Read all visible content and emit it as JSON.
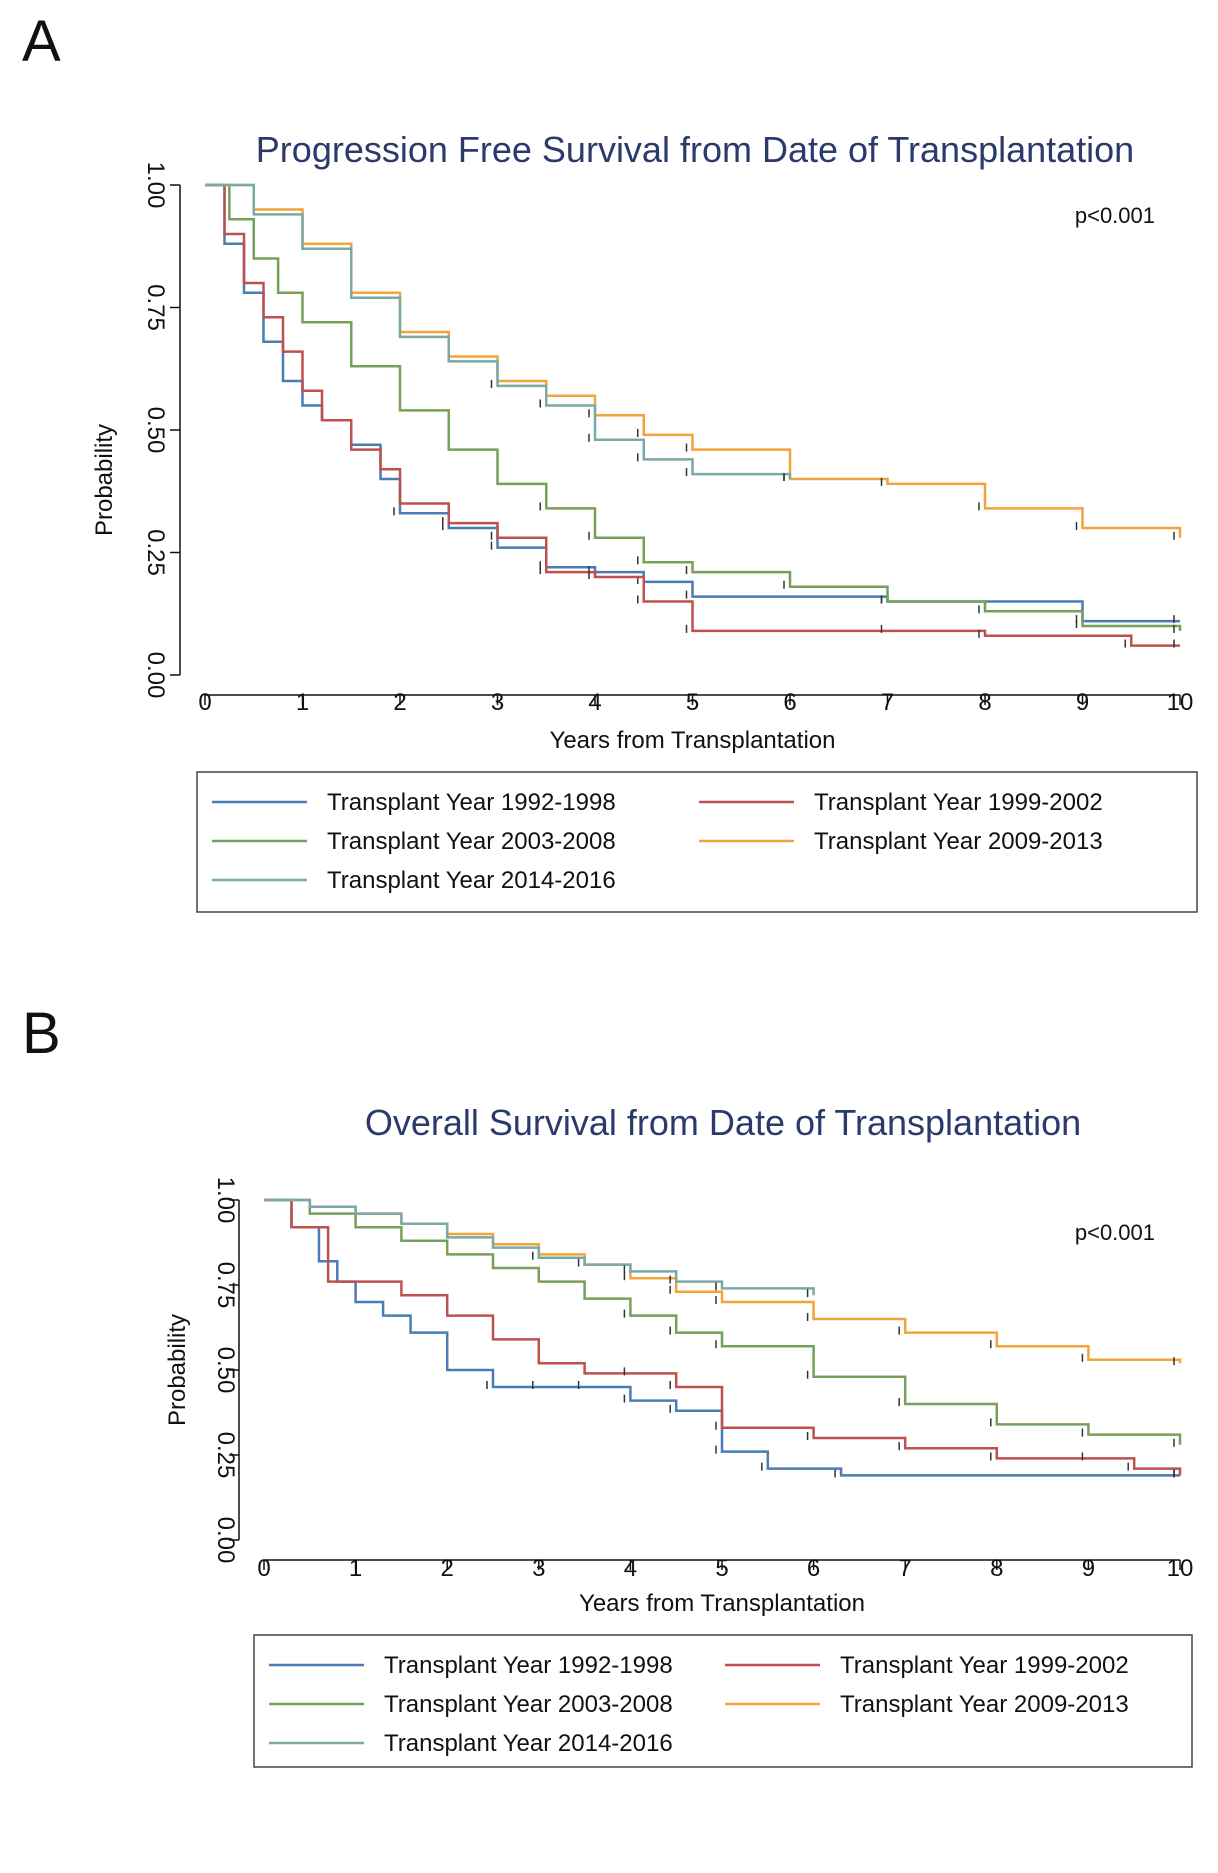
{
  "panels": [
    {
      "letter": "A",
      "chart_data": {
        "type": "line",
        "subtype": "kaplan-meier",
        "title": "Progression Free Survival from Date of Transplantation",
        "xlabel": "Years from Transplantation",
        "ylabel": "Probability",
        "annotation": "p<0.001",
        "xlim": [
          0,
          10
        ],
        "ylim": [
          0,
          1
        ],
        "xticks": [
          "0",
          "1",
          "2",
          "3",
          "4",
          "5",
          "6",
          "7",
          "8",
          "9",
          "10"
        ],
        "yticks": [
          "0.00",
          "0.25",
          "0.50",
          "0.75",
          "1.00"
        ],
        "legend": "bottom",
        "series": [
          {
            "name": "Transplant Year 1992-1998",
            "color": "#4a7cb5",
            "x": [
              0,
              0.2,
              0.4,
              0.6,
              0.8,
              1.0,
              1.2,
              1.5,
              1.8,
              2.0,
              2.5,
              3.0,
              3.5,
              4.0,
              4.5,
              5.0,
              7.0,
              9.0,
              10.0
            ],
            "y": [
              1.0,
              0.88,
              0.78,
              0.68,
              0.6,
              0.55,
              0.52,
              0.47,
              0.4,
              0.33,
              0.3,
              0.26,
              0.22,
              0.21,
              0.19,
              0.16,
              0.15,
              0.11,
              0.11
            ]
          },
          {
            "name": "Transplant Year 1999-2002",
            "color": "#c0504d",
            "x": [
              0,
              0.2,
              0.4,
              0.6,
              0.8,
              1.0,
              1.2,
              1.5,
              1.8,
              2.0,
              2.5,
              3.0,
              3.5,
              4.0,
              4.5,
              5.0,
              7.0,
              8.0,
              9.5,
              10.0
            ],
            "y": [
              1.0,
              0.9,
              0.8,
              0.73,
              0.66,
              0.58,
              0.52,
              0.46,
              0.42,
              0.35,
              0.31,
              0.28,
              0.21,
              0.2,
              0.15,
              0.09,
              0.09,
              0.08,
              0.06,
              0.06
            ]
          },
          {
            "name": "Transplant Year 2003-2008",
            "color": "#77a05a",
            "x": [
              0,
              0.25,
              0.5,
              0.75,
              1.0,
              1.5,
              2.0,
              2.5,
              3.0,
              3.5,
              4.0,
              4.5,
              5.0,
              6.0,
              7.0,
              8.0,
              9.0,
              10.0
            ],
            "y": [
              1.0,
              0.93,
              0.85,
              0.78,
              0.72,
              0.63,
              0.54,
              0.46,
              0.39,
              0.34,
              0.28,
              0.23,
              0.21,
              0.18,
              0.15,
              0.13,
              0.1,
              0.09
            ]
          },
          {
            "name": "Transplant Year 2009-2013",
            "color": "#f2a33a",
            "x": [
              0,
              0.5,
              1.0,
              1.5,
              2.0,
              2.5,
              3.0,
              3.5,
              4.0,
              4.5,
              5.0,
              6.0,
              7.0,
              8.0,
              9.0,
              10.0
            ],
            "y": [
              1.0,
              0.95,
              0.88,
              0.78,
              0.7,
              0.65,
              0.6,
              0.57,
              0.53,
              0.49,
              0.46,
              0.4,
              0.39,
              0.34,
              0.3,
              0.28
            ]
          },
          {
            "name": "Transplant Year 2014-2016",
            "color": "#7aa9a6",
            "x": [
              0,
              0.5,
              1.0,
              1.5,
              2.0,
              2.5,
              3.0,
              3.5,
              4.0,
              4.5,
              5.0,
              6.0
            ],
            "y": [
              1.0,
              0.94,
              0.87,
              0.77,
              0.69,
              0.64,
              0.59,
              0.55,
              0.48,
              0.44,
              0.41,
              0.4
            ]
          }
        ]
      }
    },
    {
      "letter": "B",
      "chart_data": {
        "type": "line",
        "subtype": "kaplan-meier",
        "title": "Overall Survival from Date of Transplantation",
        "xlabel": "Years from Transplantation",
        "ylabel": "Probability",
        "annotation": "p<0.001",
        "xlim": [
          0,
          10
        ],
        "ylim": [
          0,
          1
        ],
        "xticks": [
          "0",
          "1",
          "2",
          "3",
          "4",
          "5",
          "6",
          "7",
          "8",
          "9",
          "10"
        ],
        "yticks": [
          "0.00",
          "0.25",
          "0.50",
          "0.75",
          "1.00"
        ],
        "legend": "bottom",
        "series": [
          {
            "name": "Transplant Year 1992-1998",
            "color": "#4a7cb5",
            "x": [
              0,
              0.3,
              0.6,
              0.8,
              1.0,
              1.3,
              1.6,
              2.0,
              2.5,
              3.0,
              3.5,
              4.0,
              4.5,
              5.0,
              5.5,
              6.3,
              10.0
            ],
            "y": [
              1.0,
              0.92,
              0.82,
              0.76,
              0.7,
              0.66,
              0.61,
              0.5,
              0.45,
              0.45,
              0.45,
              0.41,
              0.38,
              0.26,
              0.21,
              0.19,
              0.19
            ]
          },
          {
            "name": "Transplant Year 1999-2002",
            "color": "#c0504d",
            "x": [
              0,
              0.3,
              0.7,
              1.0,
              1.5,
              2.0,
              2.5,
              3.0,
              3.5,
              4.0,
              4.5,
              5.0,
              6.0,
              7.0,
              8.0,
              9.0,
              9.5,
              10.0
            ],
            "y": [
              1.0,
              0.92,
              0.76,
              0.76,
              0.72,
              0.66,
              0.59,
              0.52,
              0.49,
              0.49,
              0.45,
              0.33,
              0.3,
              0.27,
              0.24,
              0.24,
              0.21,
              0.19
            ]
          },
          {
            "name": "Transplant Year 2003-2008",
            "color": "#77a05a",
            "x": [
              0,
              0.5,
              1.0,
              1.5,
              2.0,
              2.5,
              3.0,
              3.5,
              4.0,
              4.5,
              5.0,
              6.0,
              7.0,
              8.0,
              9.0,
              10.0
            ],
            "y": [
              1.0,
              0.96,
              0.92,
              0.88,
              0.84,
              0.8,
              0.76,
              0.71,
              0.66,
              0.61,
              0.57,
              0.48,
              0.4,
              0.34,
              0.31,
              0.28
            ]
          },
          {
            "name": "Transplant Year 2009-2013",
            "color": "#f2a33a",
            "x": [
              0,
              0.5,
              1.0,
              1.5,
              2.0,
              2.5,
              3.0,
              3.5,
              4.0,
              4.5,
              5.0,
              6.0,
              7.0,
              8.0,
              9.0,
              10.0
            ],
            "y": [
              1.0,
              0.98,
              0.96,
              0.93,
              0.9,
              0.87,
              0.84,
              0.81,
              0.77,
              0.73,
              0.7,
              0.65,
              0.61,
              0.57,
              0.53,
              0.52
            ]
          },
          {
            "name": "Transplant Year 2014-2016",
            "color": "#7aa9a6",
            "x": [
              0,
              0.5,
              1.0,
              1.5,
              2.0,
              2.5,
              3.0,
              3.5,
              4.0,
              4.5,
              5.0,
              6.0
            ],
            "y": [
              1.0,
              0.98,
              0.96,
              0.93,
              0.89,
              0.86,
              0.83,
              0.81,
              0.79,
              0.76,
              0.74,
              0.72
            ]
          }
        ]
      }
    }
  ]
}
